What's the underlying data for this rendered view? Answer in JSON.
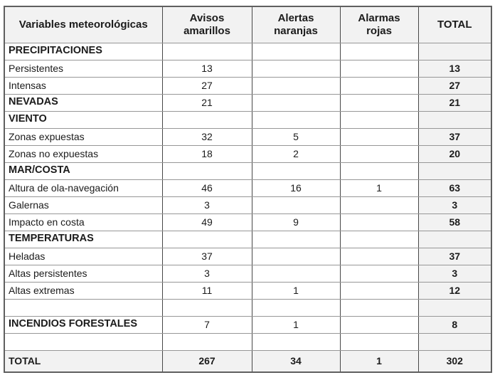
{
  "colors": {
    "shaded_cell_bg": "#f2f2f2",
    "grid_vertical": "#474747",
    "grid_horizontal": "#979797",
    "outer_border": "#5f5f5f",
    "text": "#1b1b1b",
    "page_bg": "#ffffff"
  },
  "chart_data": {
    "type": "table",
    "columns": [
      "Variables meteorológicas",
      "Avisos amarillos",
      "Alertas naranjas",
      "Alarmas rojas",
      "TOTAL"
    ],
    "rows": [
      {
        "label": "PRECIPITACIONES",
        "avisos": "",
        "alertas": "",
        "alarmas": "",
        "total": ""
      },
      {
        "label": "Persistentes",
        "avisos": "13",
        "alertas": "",
        "alarmas": "",
        "total": "13"
      },
      {
        "label": "Intensas",
        "avisos": "27",
        "alertas": "",
        "alarmas": "",
        "total": "27"
      },
      {
        "label": "NEVADAS",
        "avisos": "21",
        "alertas": "",
        "alarmas": "",
        "total": "21"
      },
      {
        "label": "VIENTO",
        "avisos": "",
        "alertas": "",
        "alarmas": "",
        "total": ""
      },
      {
        "label": "Zonas expuestas",
        "avisos": "32",
        "alertas": "5",
        "alarmas": "",
        "total": "37"
      },
      {
        "label": "Zonas no expuestas",
        "avisos": "18",
        "alertas": "2",
        "alarmas": "",
        "total": "20"
      },
      {
        "label": "MAR/COSTA",
        "avisos": "",
        "alertas": "",
        "alarmas": "",
        "total": ""
      },
      {
        "label": "Altura de ola-navegación",
        "avisos": "46",
        "alertas": "16",
        "alarmas": "1",
        "total": "63"
      },
      {
        "label": "Galernas",
        "avisos": "3",
        "alertas": "",
        "alarmas": "",
        "total": "3"
      },
      {
        "label": "Impacto en costa",
        "avisos": "49",
        "alertas": "9",
        "alarmas": "",
        "total": "58"
      },
      {
        "label": "TEMPERATURAS",
        "avisos": "",
        "alertas": "",
        "alarmas": "",
        "total": ""
      },
      {
        "label": "Heladas",
        "avisos": "37",
        "alertas": "",
        "alarmas": "",
        "total": "37"
      },
      {
        "label": "Altas persistentes",
        "avisos": "3",
        "alertas": "",
        "alarmas": "",
        "total": "3"
      },
      {
        "label": "Altas extremas",
        "avisos": "11",
        "alertas": "1",
        "alarmas": "",
        "total": "12"
      },
      {
        "label": "",
        "avisos": "",
        "alertas": "",
        "alarmas": "",
        "total": ""
      },
      {
        "label": "INCENDIOS FORESTALES",
        "avisos": "7",
        "alertas": "1",
        "alarmas": "",
        "total": "8"
      },
      {
        "label": "",
        "avisos": "",
        "alertas": "",
        "alarmas": "",
        "total": ""
      },
      {
        "label": "TOTAL",
        "avisos": "267",
        "alertas": "34",
        "alarmas": "1",
        "total": "302"
      }
    ]
  }
}
